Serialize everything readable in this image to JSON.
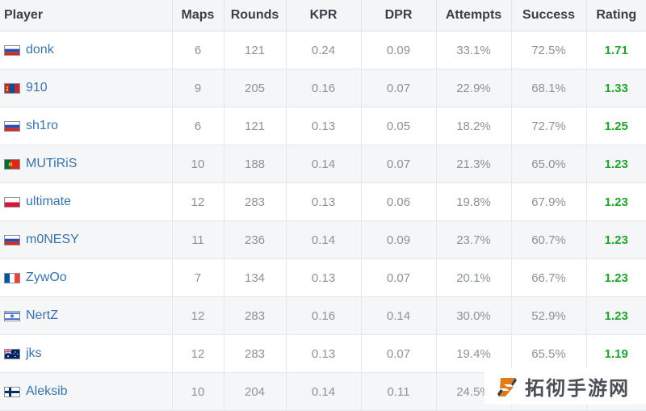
{
  "columns": [
    "Player",
    "Maps",
    "Rounds",
    "KPR",
    "DPR",
    "Attempts",
    "Success",
    "Rating"
  ],
  "rows": [
    {
      "flag": "russia-flag",
      "player": "donk",
      "maps": "6",
      "rounds": "121",
      "kpr": "0.24",
      "dpr": "0.09",
      "attempts": "33.1%",
      "success": "72.5%",
      "rating": "1.71"
    },
    {
      "flag": "mongolia-flag",
      "player": "910",
      "maps": "9",
      "rounds": "205",
      "kpr": "0.16",
      "dpr": "0.07",
      "attempts": "22.9%",
      "success": "68.1%",
      "rating": "1.33"
    },
    {
      "flag": "russia-flag",
      "player": "sh1ro",
      "maps": "6",
      "rounds": "121",
      "kpr": "0.13",
      "dpr": "0.05",
      "attempts": "18.2%",
      "success": "72.7%",
      "rating": "1.25"
    },
    {
      "flag": "portugal-flag",
      "player": "MUTiRiS",
      "maps": "10",
      "rounds": "188",
      "kpr": "0.14",
      "dpr": "0.07",
      "attempts": "21.3%",
      "success": "65.0%",
      "rating": "1.23"
    },
    {
      "flag": "poland-flag",
      "player": "ultimate",
      "maps": "12",
      "rounds": "283",
      "kpr": "0.13",
      "dpr": "0.06",
      "attempts": "19.8%",
      "success": "67.9%",
      "rating": "1.23"
    },
    {
      "flag": "russia-flag",
      "player": "m0NESY",
      "maps": "11",
      "rounds": "236",
      "kpr": "0.14",
      "dpr": "0.09",
      "attempts": "23.7%",
      "success": "60.7%",
      "rating": "1.23"
    },
    {
      "flag": "france-flag",
      "player": "ZywOo",
      "maps": "7",
      "rounds": "134",
      "kpr": "0.13",
      "dpr": "0.07",
      "attempts": "20.1%",
      "success": "66.7%",
      "rating": "1.23"
    },
    {
      "flag": "israel-flag",
      "player": "NertZ",
      "maps": "12",
      "rounds": "283",
      "kpr": "0.16",
      "dpr": "0.14",
      "attempts": "30.0%",
      "success": "52.9%",
      "rating": "1.23"
    },
    {
      "flag": "australia-flag",
      "player": "jks",
      "maps": "12",
      "rounds": "283",
      "kpr": "0.13",
      "dpr": "0.07",
      "attempts": "19.4%",
      "success": "65.5%",
      "rating": "1.19"
    },
    {
      "flag": "finland-flag",
      "player": "Aleksib",
      "maps": "10",
      "rounds": "204",
      "kpr": "0.14",
      "dpr": "0.11",
      "attempts": "24.5%",
      "success": "",
      "rating": ""
    }
  ],
  "colors": {
    "header_bg": "#f4f5f7",
    "link": "#3b73a8",
    "rating": "#21a32c",
    "muted": "#8d9296"
  },
  "watermark": {
    "text": "拓彻手游网",
    "icon": "stylized-s-logo-icon"
  }
}
